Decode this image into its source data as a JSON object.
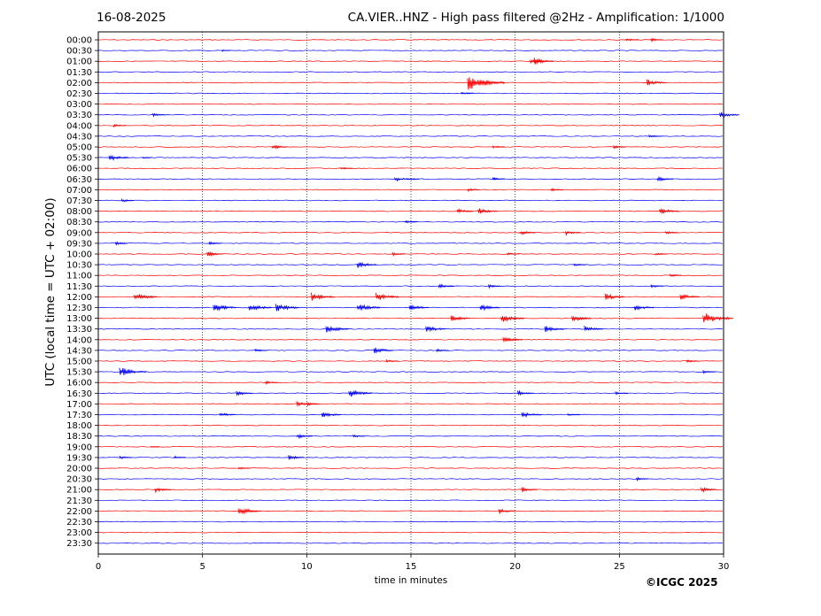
{
  "header": {
    "date": "16-08-2025",
    "title": "CA.VIER..HNZ - High pass filtered @2Hz - Amplification: 1/1000"
  },
  "footer": {
    "copyright": "©ICGC 2025"
  },
  "colors": {
    "red_trace": "#ff0000",
    "blue_trace": "#0000ff",
    "axis": "#000000"
  },
  "chart_data": {
    "type": "line",
    "title": "CA.VIER..HNZ - High pass filtered @2Hz - Amplification: 1/1000",
    "xlabel": "time in minutes",
    "ylabel": "UTC (local time = UTC + 02:00)",
    "xlim": [
      0,
      30
    ],
    "x_ticks": [
      0,
      5,
      10,
      15,
      20,
      25,
      30
    ],
    "vertical_gridlines_minutes": [
      5,
      10,
      15,
      20,
      25
    ],
    "trace_colors_alternate": [
      "red",
      "blue"
    ],
    "traces": [
      {
        "label": "00:00",
        "events": [
          [
            25.4,
            2
          ],
          [
            26.6,
            2
          ]
        ]
      },
      {
        "label": "00:30",
        "events": [
          [
            6,
            1
          ]
        ]
      },
      {
        "label": "01:00",
        "events": [
          [
            21.0,
            4
          ],
          [
            20.8,
            3
          ]
        ]
      },
      {
        "label": "01:30",
        "events": []
      },
      {
        "label": "02:00",
        "events": [
          [
            17.8,
            9
          ],
          [
            18.4,
            3
          ],
          [
            26.4,
            4
          ]
        ]
      },
      {
        "label": "02:30",
        "events": [
          [
            17.5,
            2
          ]
        ]
      },
      {
        "label": "03:00",
        "events": []
      },
      {
        "label": "03:30",
        "events": [
          [
            2.7,
            2
          ],
          [
            29.9,
            4
          ]
        ]
      },
      {
        "label": "04:00",
        "events": [
          [
            0.8,
            2
          ]
        ]
      },
      {
        "label": "04:30",
        "events": [
          [
            26.5,
            2
          ]
        ]
      },
      {
        "label": "05:00",
        "events": [
          [
            8.4,
            3
          ],
          [
            19.0,
            2
          ],
          [
            24.8,
            2
          ]
        ]
      },
      {
        "label": "05:30",
        "events": [
          [
            0.6,
            4
          ],
          [
            2.2,
            1
          ]
        ]
      },
      {
        "label": "06:00",
        "events": [
          [
            11.7,
            2
          ]
        ]
      },
      {
        "label": "06:30",
        "events": [
          [
            14.3,
            3
          ],
          [
            14.9,
            2
          ],
          [
            19.0,
            2
          ],
          [
            26.9,
            3
          ]
        ]
      },
      {
        "label": "07:00",
        "events": [
          [
            17.8,
            2
          ],
          [
            21.8,
            2
          ]
        ]
      },
      {
        "label": "07:30",
        "events": [
          [
            1.2,
            2
          ]
        ]
      },
      {
        "label": "08:00",
        "events": [
          [
            17.3,
            3
          ],
          [
            18.3,
            4
          ],
          [
            27.0,
            4
          ]
        ]
      },
      {
        "label": "08:30",
        "events": [
          [
            14.8,
            2
          ]
        ]
      },
      {
        "label": "09:00",
        "events": [
          [
            20.3,
            3
          ],
          [
            22.5,
            3
          ],
          [
            27.3,
            2
          ]
        ]
      },
      {
        "label": "09:30",
        "events": [
          [
            0.9,
            2
          ],
          [
            5.4,
            2
          ]
        ]
      },
      {
        "label": "10:00",
        "events": [
          [
            5.3,
            3
          ],
          [
            14.2,
            2
          ],
          [
            19.7,
            2
          ],
          [
            26.8,
            2
          ]
        ]
      },
      {
        "label": "10:30",
        "events": [
          [
            12.5,
            4
          ],
          [
            22.9,
            2
          ]
        ]
      },
      {
        "label": "11:00",
        "events": [
          [
            27.5,
            2
          ]
        ]
      },
      {
        "label": "11:30",
        "events": [
          [
            16.4,
            3
          ],
          [
            18.8,
            2
          ],
          [
            26.6,
            2
          ]
        ]
      },
      {
        "label": "12:00",
        "events": [
          [
            1.8,
            5
          ],
          [
            10.3,
            5
          ],
          [
            13.4,
            5
          ],
          [
            24.4,
            4
          ],
          [
            28.0,
            4
          ]
        ]
      },
      {
        "label": "12:30",
        "events": [
          [
            5.6,
            5
          ],
          [
            7.3,
            5
          ],
          [
            8.6,
            5
          ],
          [
            12.5,
            5
          ],
          [
            15.0,
            4
          ],
          [
            18.4,
            4
          ],
          [
            25.8,
            4
          ]
        ]
      },
      {
        "label": "13:00",
        "events": [
          [
            17.0,
            4
          ],
          [
            19.4,
            5
          ],
          [
            22.8,
            4
          ],
          [
            29.1,
            7
          ]
        ]
      },
      {
        "label": "13:30",
        "events": [
          [
            11.0,
            5
          ],
          [
            15.8,
            4
          ],
          [
            21.5,
            4
          ],
          [
            23.4,
            4
          ]
        ]
      },
      {
        "label": "14:00",
        "events": [
          [
            19.5,
            4
          ]
        ]
      },
      {
        "label": "14:30",
        "events": [
          [
            7.6,
            2
          ],
          [
            13.3,
            4
          ],
          [
            16.3,
            2
          ]
        ]
      },
      {
        "label": "15:00",
        "events": [
          [
            13.9,
            2
          ],
          [
            28.3,
            2
          ]
        ]
      },
      {
        "label": "15:30",
        "events": [
          [
            1.1,
            6
          ],
          [
            29.1,
            2
          ]
        ]
      },
      {
        "label": "16:00",
        "events": [
          [
            8.1,
            2
          ]
        ]
      },
      {
        "label": "16:30",
        "events": [
          [
            6.7,
            3
          ],
          [
            12.1,
            5
          ],
          [
            20.2,
            3
          ],
          [
            24.9,
            2
          ]
        ]
      },
      {
        "label": "17:00",
        "events": [
          [
            9.6,
            3
          ],
          [
            10.1,
            2
          ]
        ]
      },
      {
        "label": "17:30",
        "events": [
          [
            5.9,
            3
          ],
          [
            10.8,
            4
          ],
          [
            20.4,
            4
          ],
          [
            22.6,
            2
          ]
        ]
      },
      {
        "label": "18:00",
        "events": []
      },
      {
        "label": "18:30",
        "events": [
          [
            9.6,
            3
          ],
          [
            12.3,
            2
          ]
        ]
      },
      {
        "label": "19:00",
        "events": [
          [
            2.6,
            1
          ]
        ]
      },
      {
        "label": "19:30",
        "events": [
          [
            1.1,
            2
          ],
          [
            3.7,
            2
          ],
          [
            9.2,
            3
          ]
        ]
      },
      {
        "label": "20:00",
        "events": [
          [
            6.8,
            2
          ]
        ]
      },
      {
        "label": "20:30",
        "events": [
          [
            25.9,
            2
          ]
        ]
      },
      {
        "label": "21:00",
        "events": [
          [
            2.8,
            3
          ],
          [
            20.4,
            3
          ],
          [
            29.0,
            3
          ]
        ]
      },
      {
        "label": "21:30",
        "events": []
      },
      {
        "label": "22:00",
        "events": [
          [
            6.8,
            5
          ],
          [
            19.3,
            3
          ]
        ]
      },
      {
        "label": "22:30",
        "events": []
      },
      {
        "label": "23:00",
        "events": []
      },
      {
        "label": "23:30",
        "events": []
      }
    ]
  }
}
